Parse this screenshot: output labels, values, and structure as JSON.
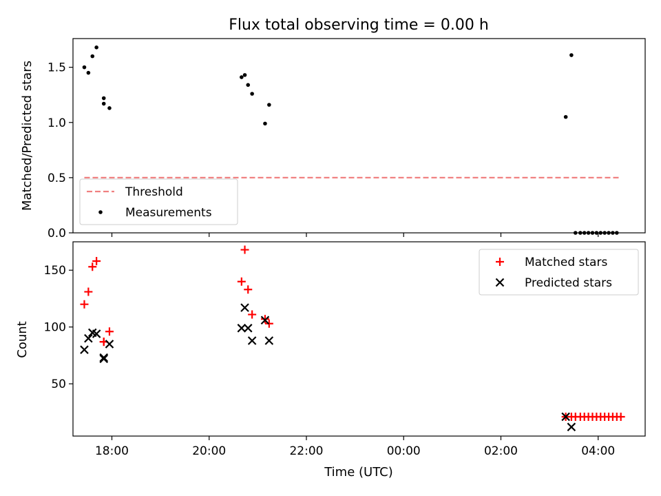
{
  "figure": {
    "title": "Flux total observing time = 0.00 h"
  },
  "chart_data": [
    {
      "type": "scatter",
      "title": "Flux total observing time = 0.00 h",
      "xlabel": "",
      "ylabel": "Matched/Predicted stars",
      "xlim": [
        "17:12",
        "04:58"
      ],
      "ylim": [
        0,
        1.76
      ],
      "xticks": [
        "18:00",
        "20:00",
        "22:00",
        "00:00",
        "02:00",
        "04:00"
      ],
      "yticks": [
        "0.0",
        "0.5",
        "1.0",
        "1.5"
      ],
      "legend": {
        "location": "lower-left",
        "entries": [
          "Threshold",
          "Measurements"
        ]
      },
      "series": [
        {
          "name": "Threshold",
          "style": "dashed-line",
          "color": "#f08080",
          "points": [
            [
              "17:26",
              0.5
            ],
            [
              "04:26",
              0.5
            ]
          ]
        },
        {
          "name": "Measurements",
          "style": "dot",
          "color": "#000000",
          "points": [
            [
              "17:26",
              1.5
            ],
            [
              "17:31",
              1.45
            ],
            [
              "17:36",
              1.6
            ],
            [
              "17:41",
              1.68
            ],
            [
              "17:50",
              1.22
            ],
            [
              "17:50",
              1.17
            ],
            [
              "17:57",
              1.13
            ],
            [
              "20:40",
              1.41
            ],
            [
              "20:44",
              1.43
            ],
            [
              "20:48",
              1.34
            ],
            [
              "20:53",
              1.26
            ],
            [
              "21:09",
              0.99
            ],
            [
              "21:14",
              1.16
            ],
            [
              "03:20",
              1.05
            ],
            [
              "03:27",
              1.61
            ],
            [
              "03:32",
              0.0
            ],
            [
              "03:38",
              0.0
            ],
            [
              "03:43",
              0.0
            ],
            [
              "03:48",
              0.0
            ],
            [
              "03:53",
              0.0
            ],
            [
              "03:58",
              0.0
            ],
            [
              "04:03",
              0.0
            ],
            [
              "04:08",
              0.0
            ],
            [
              "04:13",
              0.0
            ],
            [
              "04:18",
              0.0
            ],
            [
              "04:23",
              0.0
            ]
          ]
        }
      ]
    },
    {
      "type": "scatter",
      "title": "",
      "xlabel": "Time (UTC)",
      "ylabel": "Count",
      "xlim": [
        "17:12",
        "04:58"
      ],
      "ylim": [
        4,
        175
      ],
      "xticks": [
        "18:00",
        "20:00",
        "22:00",
        "00:00",
        "02:00",
        "04:00"
      ],
      "yticks": [
        "50",
        "100",
        "150"
      ],
      "legend": {
        "location": "upper-right",
        "entries": [
          "Matched stars",
          "Predicted stars"
        ]
      },
      "series": [
        {
          "name": "Matched stars",
          "marker": "plus",
          "color": "#ff0000",
          "points": [
            [
              "17:26",
              120
            ],
            [
              "17:31",
              131
            ],
            [
              "17:36",
              153
            ],
            [
              "17:41",
              158
            ],
            [
              "17:50",
              87
            ],
            [
              "17:50",
              87
            ],
            [
              "17:57",
              96
            ],
            [
              "20:40",
              140
            ],
            [
              "20:44",
              168
            ],
            [
              "20:48",
              133
            ],
            [
              "20:53",
              111
            ],
            [
              "21:09",
              107
            ],
            [
              "21:14",
              103
            ],
            [
              "03:20",
              21
            ],
            [
              "03:27",
              21
            ],
            [
              "03:32",
              21
            ],
            [
              "03:38",
              21
            ],
            [
              "03:43",
              21
            ],
            [
              "03:48",
              21
            ],
            [
              "03:53",
              21
            ],
            [
              "03:58",
              21
            ],
            [
              "04:03",
              21
            ],
            [
              "04:08",
              21
            ],
            [
              "04:13",
              21
            ],
            [
              "04:18",
              21
            ],
            [
              "04:23",
              21
            ],
            [
              "04:28",
              21
            ]
          ]
        },
        {
          "name": "Predicted stars",
          "marker": "x",
          "color": "#000000",
          "points": [
            [
              "17:26",
              80
            ],
            [
              "17:31",
              90
            ],
            [
              "17:36",
              95
            ],
            [
              "17:41",
              94
            ],
            [
              "17:50",
              72
            ],
            [
              "17:50",
              73
            ],
            [
              "17:57",
              85
            ],
            [
              "20:40",
              99
            ],
            [
              "20:44",
              117
            ],
            [
              "20:48",
              99
            ],
            [
              "20:53",
              88
            ],
            [
              "21:09",
              106
            ],
            [
              "21:14",
              88
            ],
            [
              "03:20",
              21
            ],
            [
              "03:27",
              12
            ]
          ]
        }
      ]
    }
  ]
}
